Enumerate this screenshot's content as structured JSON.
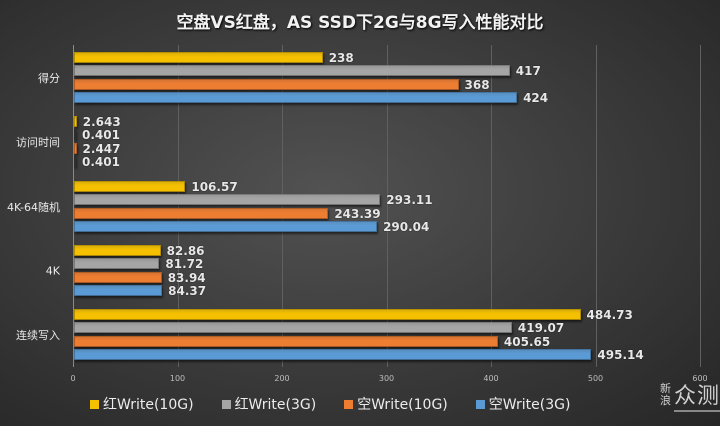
{
  "title": "空盘VS红盘，AS SSD下2G与8G写入性能对比",
  "chart_data": {
    "type": "bar",
    "orientation": "horizontal",
    "title": "空盘VS红盘，AS SSD下2G与8G写入性能对比",
    "xlabel": "",
    "ylabel": "",
    "xlim": [
      0,
      600
    ],
    "xticks": [
      "0",
      "100",
      "200",
      "300",
      "400",
      "500",
      "600"
    ],
    "grid": true,
    "legend_position": "bottom",
    "categories": [
      "得分",
      "访问时间",
      "4K-64随机",
      "4K",
      "连续写入"
    ],
    "series": [
      {
        "name": "红Write(10G)",
        "color": "#f5c000",
        "values": [
          238,
          2.643,
          106.57,
          82.86,
          484.73
        ],
        "labels": [
          "238",
          "2.643",
          "106.57",
          "82.86",
          "484.73"
        ]
      },
      {
        "name": "红Write(3G)",
        "color": "#a5a5a5",
        "values": [
          417,
          0.401,
          293.11,
          81.72,
          419.07
        ],
        "labels": [
          "417",
          "0.401",
          "293.11",
          "81.72",
          "419.07"
        ]
      },
      {
        "name": "空Write(10G)",
        "color": "#ed7d31",
        "values": [
          368,
          2.447,
          243.39,
          83.94,
          405.65
        ],
        "labels": [
          "368",
          "2.447",
          "243.39",
          "83.94",
          "405.65"
        ]
      },
      {
        "name": "空Write(3G)",
        "color": "#5b9bd5",
        "values": [
          424,
          0.401,
          290.04,
          84.37,
          495.14
        ],
        "labels": [
          "424",
          "0.401",
          "290.04",
          "84.37",
          "495.14"
        ]
      }
    ]
  },
  "legend": [
    {
      "label": "红Write(10G)",
      "color": "#f5c000"
    },
    {
      "label": "红Write(3G)",
      "color": "#a5a5a5"
    },
    {
      "label": "空Write(10G)",
      "color": "#ed7d31"
    },
    {
      "label": "空Write(3G)",
      "color": "#5b9bd5"
    }
  ],
  "watermark": {
    "small": "新浪",
    "big": "众测"
  }
}
